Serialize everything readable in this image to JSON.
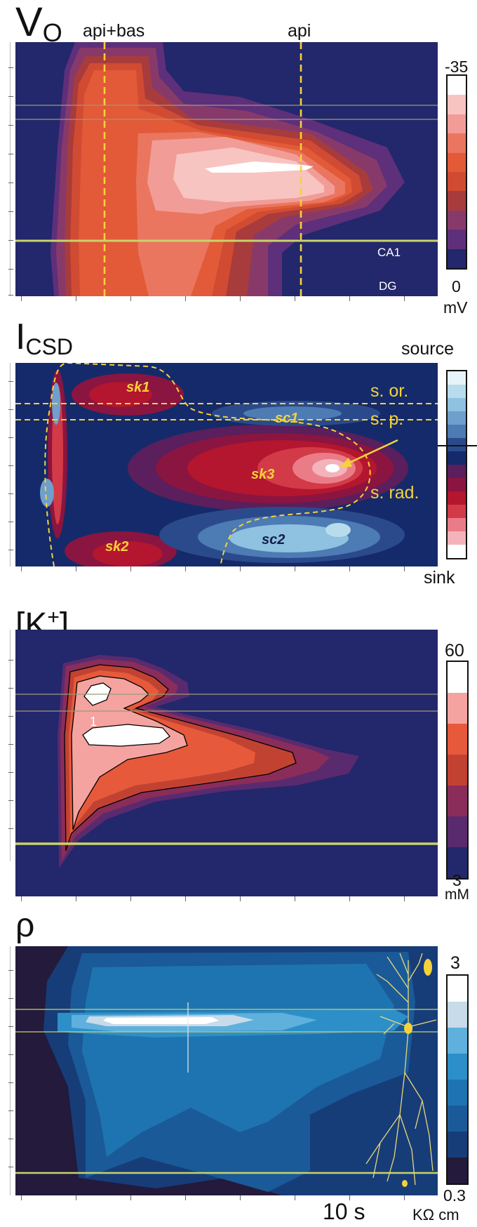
{
  "chart_data": [
    {
      "type": "heatmap",
      "title": "VO",
      "title_main": "V",
      "title_sub": "O",
      "annotations": [
        "api+bas",
        "api"
      ],
      "layer_labels": [
        "CA1",
        "DG"
      ],
      "colorbar": {
        "max": "-35",
        "min": "0",
        "unit": "mV",
        "levels": 10
      },
      "colors": [
        "#ffffff",
        "#f8c4c1",
        "#f19c97",
        "#ea7660",
        "#e25a38",
        "#d04b32",
        "#a83b3c",
        "#873a6a",
        "#5e2f7a",
        "#23276b"
      ]
    },
    {
      "type": "heatmap",
      "title": "ICSD",
      "title_main": "I",
      "title_sub": "CSD",
      "colorbar": {
        "top": "source",
        "bottom": "sink",
        "levels": 14
      },
      "layer_labels": [
        "s. or.",
        "s. p.",
        "s. rad."
      ],
      "region_labels": [
        "sk1",
        "sc1",
        "sk3",
        "sc2",
        "sk2"
      ],
      "colors": [
        "#e6f3f8",
        "#b9dcec",
        "#8fc1e0",
        "#6f9fcc",
        "#4d7bb4",
        "#2b4a8c",
        "#152a6a",
        "#5a1f5c",
        "#8a1540",
        "#b3162e",
        "#d23a47",
        "#ea7c88",
        "#f4b3bb",
        "#ffffff"
      ]
    },
    {
      "type": "heatmap",
      "title": "[K+]o",
      "title_main": "[K",
      "title_sup": "+",
      "title_close": "]",
      "title_sub": "o",
      "annotations": [
        "1"
      ],
      "colorbar": {
        "max": "60",
        "min": "3",
        "unit": "mM",
        "levels": 7
      },
      "colors": [
        "#ffffff",
        "#f4a3a0",
        "#e65a3b",
        "#c24232",
        "#8a2d5a",
        "#5a2a6e",
        "#23276b"
      ]
    },
    {
      "type": "heatmap",
      "title": "ρ",
      "colorbar": {
        "max": "3",
        "min": "0.3",
        "unit": "KΩ cm",
        "levels": 8
      },
      "time_scale_label": "10 s",
      "colors": [
        "#ffffff",
        "#c7dbe8",
        "#5fb0dc",
        "#2c8fc8",
        "#1e74b0",
        "#1a5a98",
        "#173d78",
        "#231a3c"
      ]
    }
  ]
}
